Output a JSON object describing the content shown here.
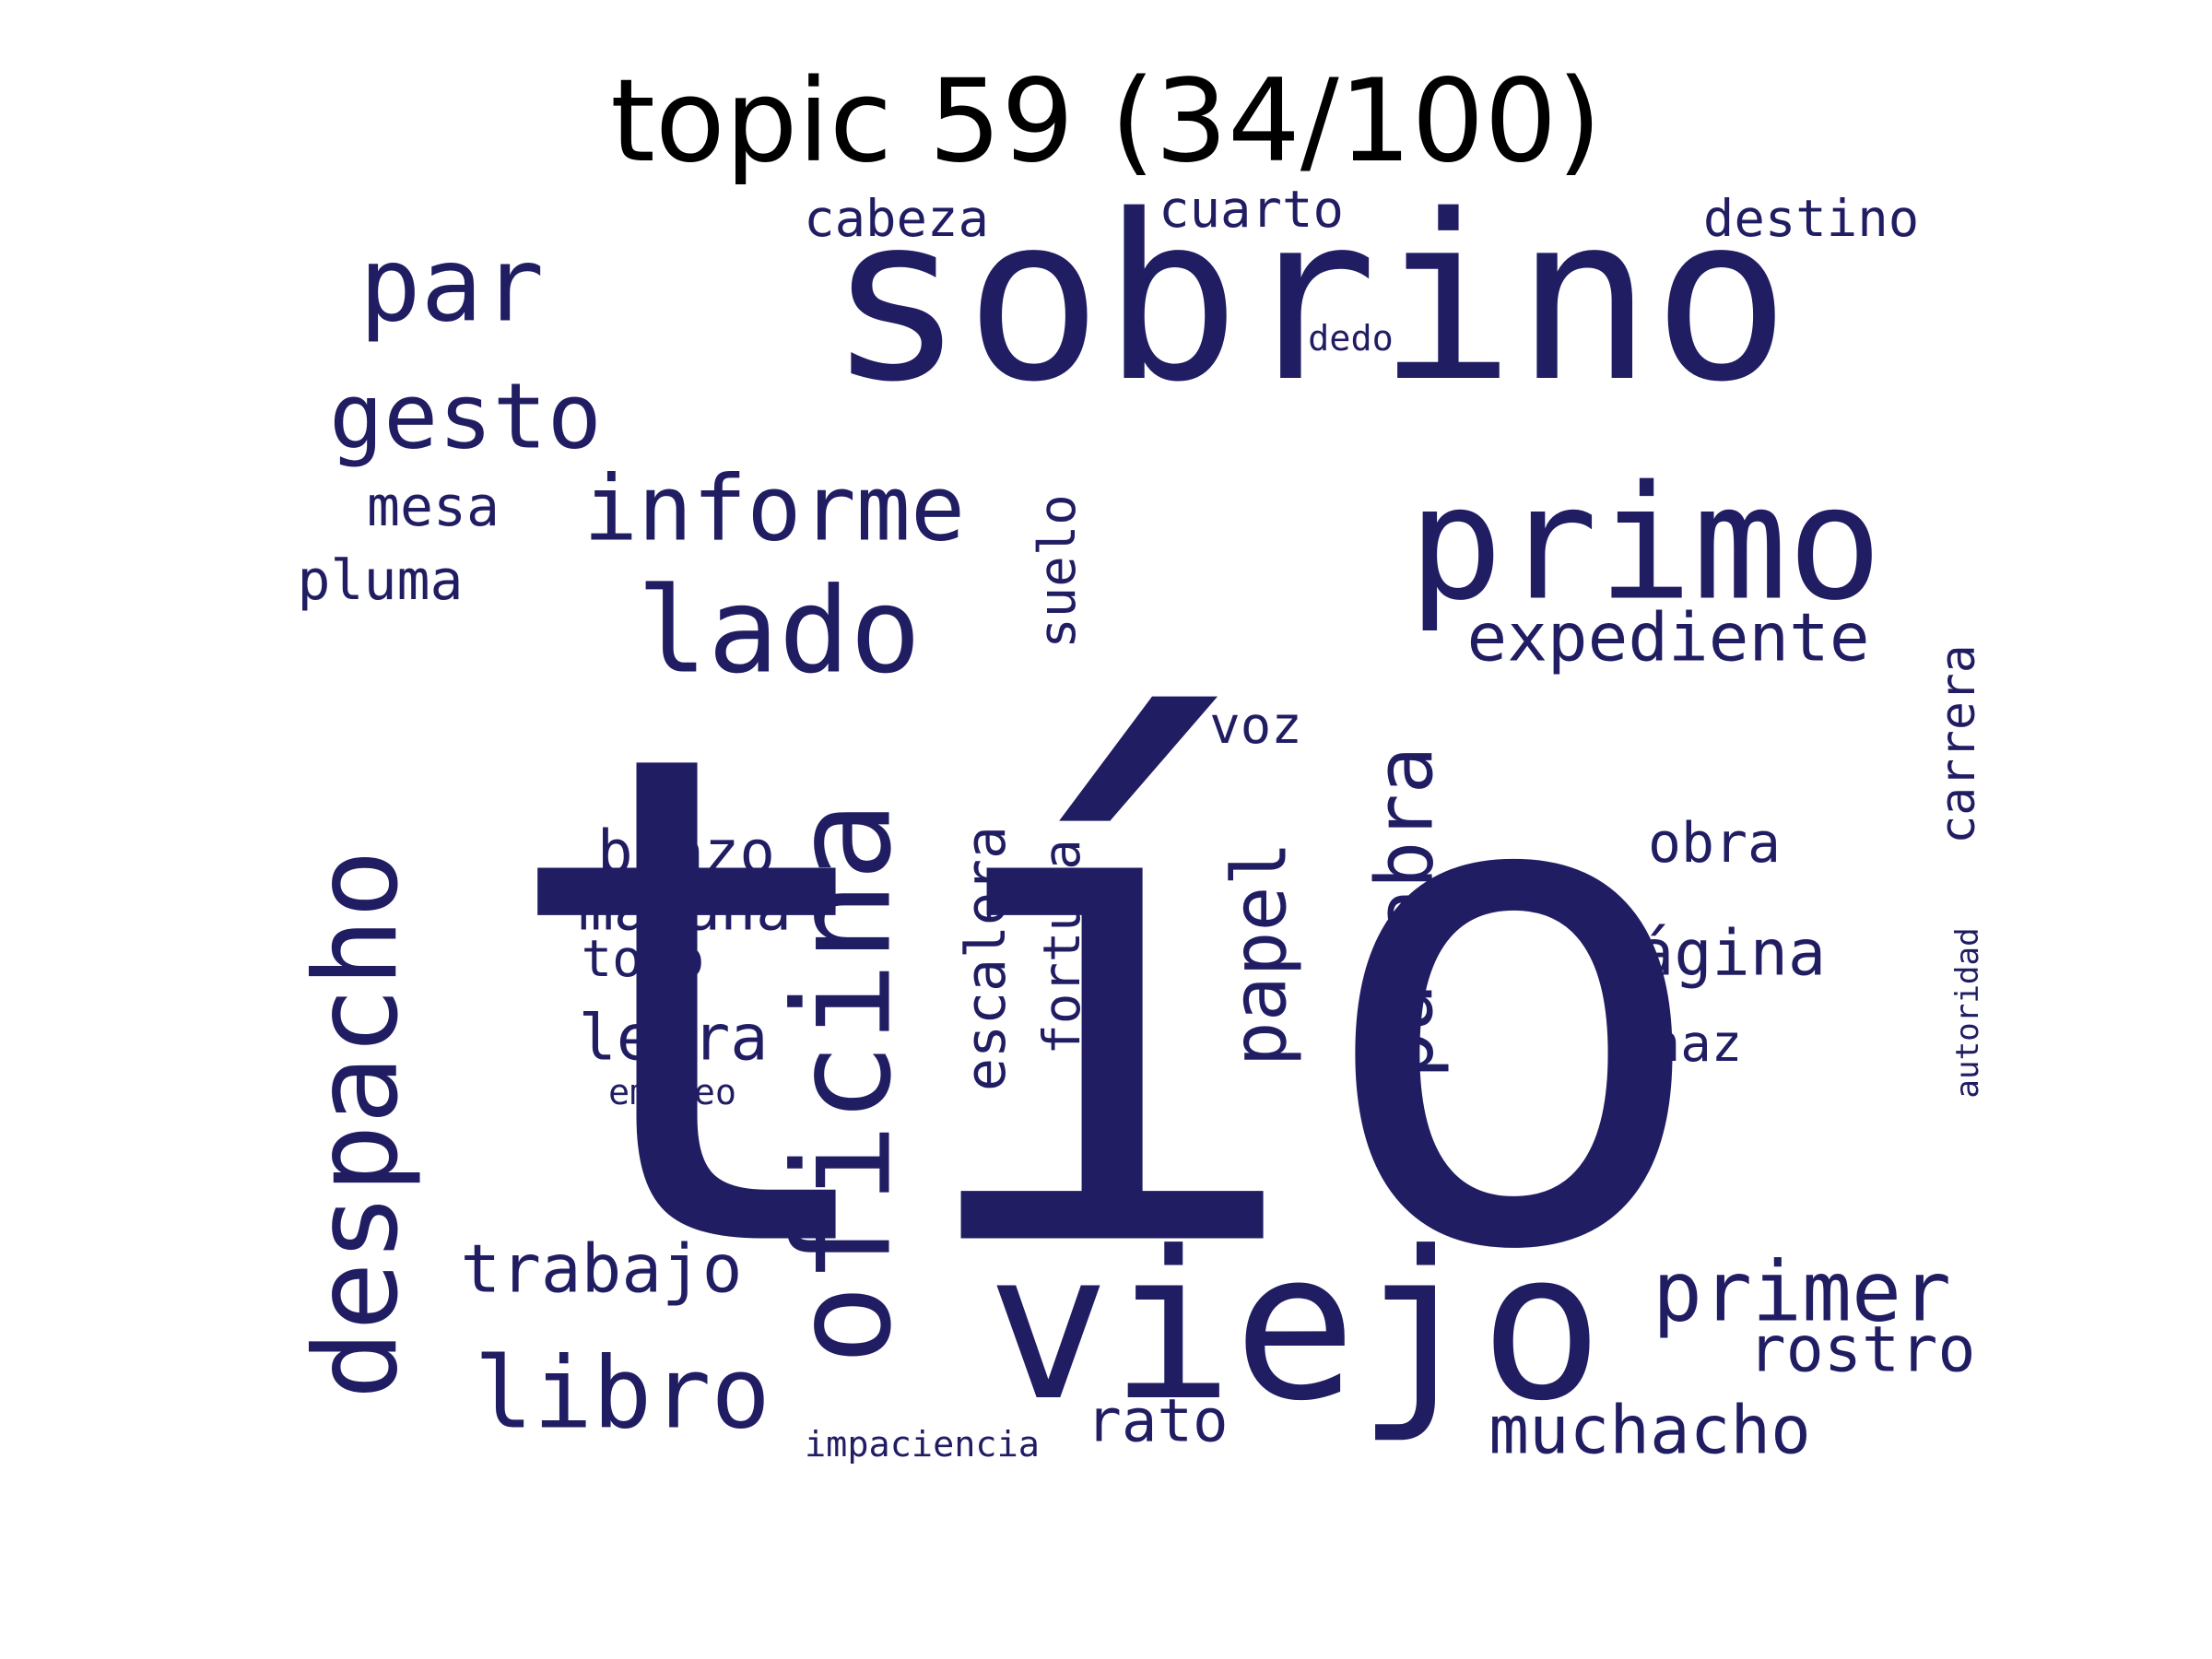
{
  "title": "topic 59 (34/100)",
  "word_color": "#201d63",
  "words": [
    {
      "text": "tío",
      "rotate": false
    },
    {
      "text": "sobrino",
      "rotate": false
    },
    {
      "text": "primo",
      "rotate": false
    },
    {
      "text": "viejo",
      "rotate": false
    },
    {
      "text": "oficina",
      "rotate": true
    },
    {
      "text": "despacho",
      "rotate": true
    },
    {
      "text": "par",
      "rotate": false
    },
    {
      "text": "lado",
      "rotate": false
    },
    {
      "text": "informe",
      "rotate": false
    },
    {
      "text": "gesto",
      "rotate": false
    },
    {
      "text": "libro",
      "rotate": false
    },
    {
      "text": "palabra",
      "rotate": true
    },
    {
      "text": "papel",
      "rotate": true
    },
    {
      "text": "primer",
      "rotate": false
    },
    {
      "text": "muchacho",
      "rotate": false
    },
    {
      "text": "expediente",
      "rotate": false
    },
    {
      "text": "trabajo",
      "rotate": false
    },
    {
      "text": "página",
      "rotate": false
    },
    {
      "text": "rostro",
      "rotate": false
    },
    {
      "text": "escalera",
      "rotate": true
    },
    {
      "text": "fortuna",
      "rotate": true
    },
    {
      "text": "suelo",
      "rotate": true
    },
    {
      "text": "destino",
      "rotate": false
    },
    {
      "text": "cabeza",
      "rotate": false
    },
    {
      "text": "cuarto",
      "rotate": false
    },
    {
      "text": "letra",
      "rotate": false
    },
    {
      "text": "brazo",
      "rotate": false
    },
    {
      "text": "mañana",
      "rotate": false
    },
    {
      "text": "carrera",
      "rotate": true
    },
    {
      "text": "rato",
      "rotate": false
    },
    {
      "text": "mesa",
      "rotate": false
    },
    {
      "text": "pluma",
      "rotate": false
    },
    {
      "text": "tono",
      "rotate": false
    },
    {
      "text": "obra",
      "rotate": false
    },
    {
      "text": "haz",
      "rotate": false
    },
    {
      "text": "voz",
      "rotate": false
    },
    {
      "text": "impaciencia",
      "rotate": false
    },
    {
      "text": "empleo",
      "rotate": false
    },
    {
      "text": "autoridad",
      "rotate": true
    },
    {
      "text": "dedo",
      "rotate": false
    }
  ]
}
